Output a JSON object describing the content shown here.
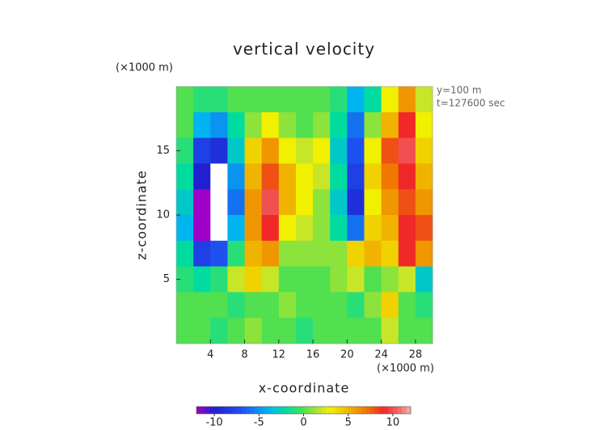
{
  "chart_data": {
    "type": "contour",
    "title": "vertical velocity",
    "xlabel": "x-coordinate",
    "ylabel": "z-coordinate",
    "x_unit": "(×1000 m)",
    "y_unit": "(×1000 m)",
    "annotations": [
      "y=100 m",
      "t=127600 sec"
    ],
    "x": [
      1,
      3,
      5,
      7,
      9,
      11,
      13,
      15,
      17,
      19,
      21,
      23,
      25,
      27,
      29
    ],
    "y": [
      19,
      17,
      15,
      13,
      11,
      9,
      7,
      5,
      3,
      1
    ],
    "z": [
      [
        0,
        -1,
        -1,
        0,
        0,
        0,
        0,
        0,
        0,
        -1,
        -4,
        -2,
        3,
        6,
        2
      ],
      [
        0,
        -4,
        -5,
        -2,
        1,
        3,
        1,
        0,
        1,
        -2,
        -6,
        1,
        5,
        9,
        3
      ],
      [
        -1,
        -8,
        -9,
        -3,
        4,
        6,
        3,
        2,
        3,
        -3,
        -7,
        3,
        8,
        10,
        4
      ],
      [
        -2,
        -10,
        -13,
        -5,
        5,
        8,
        5,
        3,
        2,
        -2,
        -8,
        4,
        7,
        9,
        5
      ],
      [
        -3,
        -12,
        -14,
        -6,
        6,
        10,
        5,
        3,
        1,
        -3,
        -9,
        3,
        6,
        8,
        6
      ],
      [
        -4,
        -12,
        -13,
        -4,
        6,
        9,
        3,
        2,
        1,
        -2,
        -6,
        4,
        5,
        9,
        8
      ],
      [
        -2,
        -8,
        -7,
        -1,
        5,
        6,
        1,
        1,
        1,
        1,
        4,
        5,
        4,
        9,
        6
      ],
      [
        -1,
        -2,
        -1,
        2,
        4,
        2,
        0,
        0,
        0,
        1,
        2,
        0,
        1,
        2,
        -3
      ],
      [
        0,
        0,
        0,
        -1,
        0,
        0,
        1,
        0,
        0,
        0,
        -1,
        1,
        4,
        0,
        -1
      ],
      [
        0,
        0,
        -1,
        0,
        1,
        0,
        0,
        -1,
        0,
        0,
        0,
        0,
        2,
        0,
        0
      ]
    ],
    "xlim": [
      0,
      30
    ],
    "ylim": [
      0,
      20
    ],
    "xticks": [
      4,
      8,
      12,
      16,
      20,
      24,
      28
    ],
    "yticks": [
      5,
      10,
      15
    ],
    "clim": [
      -12,
      12
    ],
    "cticks": [
      -10,
      -5,
      0,
      5,
      10
    ],
    "out_of_range_color": "#ffffff",
    "colorscale": [
      [
        -12,
        "#a000c8"
      ],
      [
        -10,
        "#2020d0"
      ],
      [
        -7,
        "#1e50f0"
      ],
      [
        -4,
        "#00b4f0"
      ],
      [
        -2,
        "#00dca0"
      ],
      [
        0,
        "#50e050"
      ],
      [
        2,
        "#c8e628"
      ],
      [
        3,
        "#f0f000"
      ],
      [
        5,
        "#f0b400"
      ],
      [
        7,
        "#f07800"
      ],
      [
        9,
        "#f02828"
      ],
      [
        11,
        "#f07878"
      ],
      [
        12,
        "#f0b4b4"
      ]
    ]
  }
}
